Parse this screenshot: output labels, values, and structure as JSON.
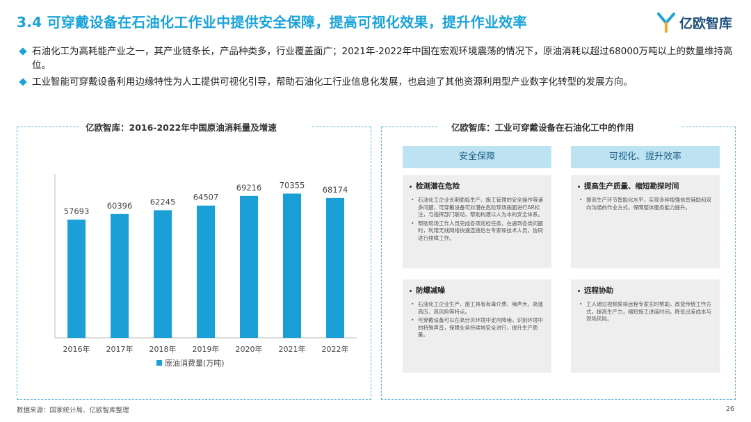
{
  "header": {
    "title": "3.4 可穿戴设备在石油化工作业中提供安全保障，提高可视化效果，提升作业效率",
    "logo_text": "亿欧智库",
    "brand_color": "#1aa3d9"
  },
  "bullets": [
    "石油化工为高耗能产业之一，其产业链条长，产品种类多，行业覆盖面广；2021年-2022年中国在宏观环境震荡的情况下，原油消耗以超过68000万吨以上的数量维持高位。",
    "工业智能可穿戴设备利用边缘特性为人工提供可视化引导，帮助石油化工行业信息化发展，也启迪了其他资源利用型产业数字化转型的发展方向。"
  ],
  "left_panel": {
    "title": "亿欧智库：2016-2022年中国原油消耗量及增速"
  },
  "chart_data": {
    "type": "bar",
    "categories": [
      "2016年",
      "2017年",
      "2018年",
      "2019年",
      "2020年",
      "2021年",
      "2022年"
    ],
    "series": [
      {
        "name": "原油消费量(万吨)",
        "values": [
          57693,
          60396,
          62245,
          64507,
          69216,
          70355,
          68174
        ],
        "color": "#1a9fd6"
      }
    ],
    "ylim": [
      0,
      80000
    ],
    "legend_position": "bottom"
  },
  "right_panel": {
    "title": "亿欧智库：工业可穿戴设备在石油化工中的作用",
    "columns": [
      {
        "header": "安全保障",
        "cards": [
          {
            "title": "检测潜在危险",
            "items": [
              "石油化工企业长期面临生产、施工管理的安全操作等诸多问题，可穿戴设备可对潜在危险现场画面进行AR标注，与指挥部门联动，帮助构建以人为本的安全体系。",
              "帮助现场工作人员完成各项巡检任务，在遇到各类问题时，利用无线网络快速连接后台专家和技术人员，协同进行排障工作。"
            ]
          },
          {
            "title": "防爆减噪",
            "items": [
              "石油化工企业生产、施工具有有毒介质、噪声大、高温高压、高风险等特点。",
              "可穿戴设备可以在高分贝环境中定向降噪，识别环境中的特殊声音，保障业务持续地安全进行，提升生产质量。"
            ]
          }
        ]
      },
      {
        "header": "可视化、提升效率",
        "cards": [
          {
            "title": "提高生产质量、缩短勘探时间",
            "items": [
              "提高生产环节智能化水平，实现多种增强信息辅助和双向沟通的作业方式，保障整体服务能力提升。"
            ]
          },
          {
            "title": "远程协助",
            "items": [
              "工人通过视频获得远程专家实时帮助，改变传统工作方式，提高生产力，缩短施工进度时间，降低出差成本与现场风险。"
            ]
          }
        ]
      }
    ]
  },
  "footer": {
    "source": "数据来源：国家统计局、亿欧智库整理",
    "page_number": "26"
  }
}
